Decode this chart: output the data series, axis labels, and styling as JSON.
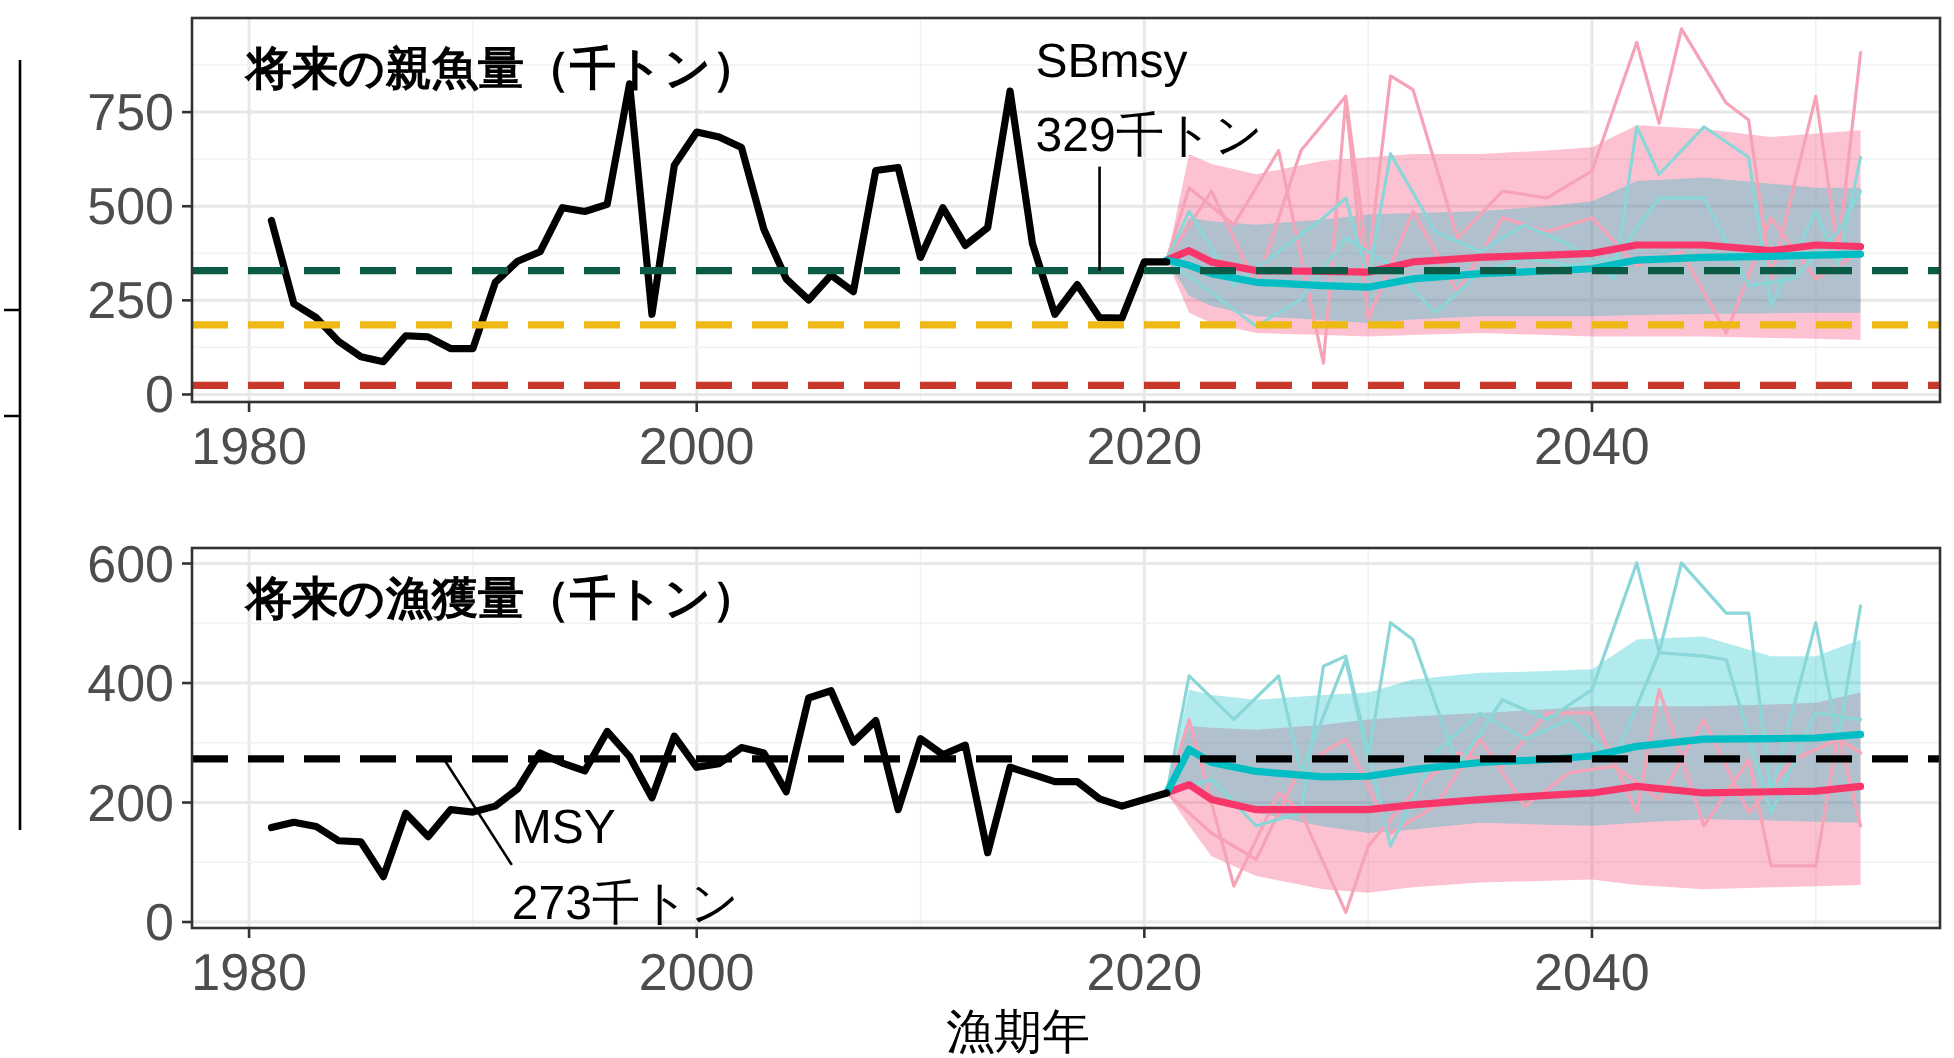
{
  "chart_data": [
    {
      "type": "line",
      "title": "将来の親魚量（千トン）",
      "xlim": [
        1977.45,
        2055.55
      ],
      "ylim": [
        -20,
        1000
      ],
      "xticks": [
        1980,
        2000,
        2020,
        2040
      ],
      "yticks": [
        0,
        250,
        500,
        750
      ],
      "grid": true,
      "series": [
        {
          "color": "#000000",
          "x": [
            1981,
            1982,
            1983,
            1984,
            1985,
            1986,
            1987,
            1988,
            1989,
            1990,
            1991,
            1992,
            1993,
            1994,
            1995,
            1996,
            1997,
            1998,
            1999,
            2000,
            2001,
            2002,
            2003,
            2004,
            2005,
            2006,
            2007,
            2008,
            2009,
            2010,
            2011,
            2012,
            2013,
            2014,
            2015,
            2016,
            2017,
            2018,
            2019,
            2020,
            2021
          ],
          "values": [
            462,
            241,
            204,
            141,
            100,
            87,
            156,
            153,
            122,
            122,
            298,
            354,
            379,
            496,
            486,
            505,
            825,
            213,
            609,
            697,
            684,
            656,
            439,
            307,
            251,
            317,
            273,
            595,
            603,
            364,
            496,
            396,
            443,
            806,
            401,
            213,
            292,
            204,
            203,
            352,
            352
          ]
        },
        {
          "color": "#f8366a",
          "x": [
            2021,
            2022,
            2023,
            2025,
            2028,
            2030,
            2032,
            2035,
            2038,
            2040,
            2042,
            2045,
            2048,
            2050,
            2052
          ],
          "values": [
            357,
            382,
            352,
            329,
            327,
            325,
            352,
            364,
            370,
            375,
            397,
            397,
            382,
            397,
            393
          ],
          "upper": [
            357,
            639,
            612,
            585,
            621,
            630,
            639,
            639,
            648,
            657,
            715,
            705,
            684,
            693,
            702
          ],
          "lower": [
            357,
            217,
            190,
            163,
            158,
            154,
            158,
            163,
            158,
            154,
            154,
            154,
            150,
            148,
            145
          ]
        },
        {
          "color": "#00bec4",
          "x": [
            2021,
            2022,
            2023,
            2025,
            2028,
            2030,
            2032,
            2035,
            2038,
            2040,
            2042,
            2045,
            2048,
            2050,
            2052
          ],
          "values": [
            357,
            343,
            321,
            298,
            289,
            285,
            307,
            321,
            328,
            334,
            357,
            364,
            367,
            370,
            373
          ],
          "upper": [
            357,
            469,
            460,
            451,
            465,
            478,
            482,
            487,
            500,
            513,
            567,
            576,
            560,
            549,
            549
          ],
          "lower": [
            357,
            262,
            235,
            208,
            198,
            190,
            199,
            208,
            208,
            208,
            211,
            214,
            216,
            217,
            217
          ]
        },
        {
          "color": "#f6a3b7",
          "x": [
            2021,
            2023,
            2025,
            2027,
            2029,
            2030,
            2031,
            2032,
            2034,
            2036,
            2038,
            2040,
            2042,
            2043,
            2044,
            2046,
            2047,
            2048,
            2050,
            2051,
            2052
          ],
          "values": [
            357,
            540,
            289,
            648,
            792,
            343,
            846,
            810,
            415,
            540,
            522,
            594,
            935,
            720,
            971,
            774,
            729,
            307,
            792,
            379,
            908
          ]
        },
        {
          "color": "#f6a3b7",
          "x": [
            2021,
            2022,
            2024,
            2026,
            2028,
            2029,
            2030,
            2032,
            2034,
            2036,
            2038,
            2040,
            2042,
            2044,
            2046,
            2048,
            2050,
            2052
          ],
          "values": [
            357,
            549,
            451,
            648,
            83,
            783,
            199,
            487,
            271,
            469,
            433,
            469,
            343,
            379,
            163,
            469,
            307,
            379
          ]
        },
        {
          "color": "#8ad6d8",
          "x": [
            2021,
            2022,
            2024,
            2026,
            2028,
            2029,
            2030,
            2031,
            2033,
            2035,
            2037,
            2039,
            2041,
            2042,
            2043,
            2045,
            2047,
            2048,
            2050,
            2051,
            2052
          ],
          "values": [
            357,
            487,
            289,
            379,
            469,
            522,
            307,
            639,
            433,
            379,
            451,
            397,
            307,
            711,
            585,
            711,
            630,
            235,
            487,
            343,
            630
          ]
        },
        {
          "color": "#8ad6d8",
          "x": [
            2021,
            2023,
            2025,
            2027,
            2029,
            2031,
            2033,
            2035,
            2037,
            2039,
            2041,
            2043,
            2045,
            2047,
            2049,
            2051,
            2052
          ],
          "values": [
            357,
            271,
            181,
            253,
            415,
            343,
            217,
            325,
            361,
            343,
            361,
            522,
            522,
            289,
            307,
            433,
            540
          ]
        }
      ],
      "ref_lines": [
        {
          "axis": "y",
          "value": 329,
          "color": "#0b5a45",
          "line_style": "dashed"
        },
        {
          "axis": "y",
          "value": 185,
          "color": "#eeb815",
          "line_style": "dashed"
        },
        {
          "axis": "y",
          "value": 24,
          "color": "#c8392b",
          "line_style": "dashed"
        }
      ],
      "annotations": [
        {
          "text": "SBmsy\n329千トン",
          "x": 2018,
          "y": 329
        }
      ]
    },
    {
      "type": "line",
      "title": "将来の漁獲量（千トン）",
      "xlabel": "漁期年",
      "xlim": [
        1977.45,
        2055.55
      ],
      "ylim": [
        -10,
        626
      ],
      "xticks": [
        1980,
        2000,
        2020,
        2040
      ],
      "yticks": [
        0,
        200,
        400,
        600
      ],
      "grid": true,
      "series": [
        {
          "color": "#000000",
          "x": [
            1981,
            1982,
            1983,
            1984,
            1985,
            1986,
            1987,
            1988,
            1989,
            1990,
            1991,
            1992,
            1993,
            1994,
            1995,
            1996,
            1997,
            1998,
            1999,
            2000,
            2001,
            2002,
            2003,
            2004,
            2005,
            2006,
            2007,
            2008,
            2009,
            2010,
            2011,
            2012,
            2013,
            2014,
            2015,
            2016,
            2017,
            2018,
            2019,
            2020,
            2021
          ],
          "values": [
            158,
            167,
            160,
            136,
            134,
            76,
            182,
            143,
            188,
            184,
            194,
            223,
            283,
            266,
            253,
            319,
            277,
            208,
            311,
            259,
            265,
            292,
            283,
            218,
            375,
            387,
            301,
            337,
            188,
            307,
            280,
            296,
            116,
            259,
            247,
            235,
            235,
            206,
            194,
            205,
            216
          ]
        },
        {
          "color": "#f8366a",
          "x": [
            2021,
            2022,
            2023,
            2025,
            2028,
            2030,
            2032,
            2035,
            2038,
            2040,
            2042,
            2045,
            2048,
            2050,
            2052
          ],
          "values": [
            216,
            230,
            205,
            188,
            188,
            188,
            196,
            205,
            212,
            216,
            227,
            216,
            218,
            219,
            227
          ],
          "upper": [
            216,
            328,
            325,
            322,
            330,
            339,
            344,
            350,
            356,
            361,
            361,
            361,
            364,
            367,
            384
          ],
          "lower": [
            216,
            161,
            110,
            77,
            55,
            49,
            58,
            66,
            69,
            71,
            62,
            55,
            58,
            60,
            62
          ]
        },
        {
          "color": "#00bec4",
          "x": [
            2021,
            2022,
            2023,
            2025,
            2028,
            2030,
            2032,
            2035,
            2038,
            2040,
            2042,
            2045,
            2048,
            2050,
            2052
          ],
          "values": [
            216,
            289,
            267,
            252,
            243,
            244,
            255,
            267,
            272,
            278,
            294,
            306,
            307,
            308,
            314
          ],
          "upper": [
            216,
            389,
            380,
            372,
            380,
            384,
            406,
            417,
            420,
            423,
            473,
            478,
            445,
            445,
            473
          ],
          "lower": [
            216,
            227,
            205,
            183,
            160,
            149,
            155,
            166,
            163,
            161,
            166,
            172,
            170,
            168,
            166
          ]
        },
        {
          "color": "#f6a3b7",
          "x": [
            2021,
            2022,
            2024,
            2026,
            2027,
            2029,
            2030,
            2032,
            2034,
            2036,
            2038,
            2040,
            2042,
            2043,
            2045,
            2047,
            2048,
            2050,
            2051,
            2052
          ],
          "values": [
            216,
            339,
            60,
            216,
            183,
            16,
            127,
            216,
            283,
            261,
            350,
            350,
            183,
            389,
            161,
            272,
            94,
            94,
            317,
            161
          ]
        },
        {
          "color": "#f6a3b7",
          "x": [
            2021,
            2023,
            2025,
            2027,
            2029,
            2031,
            2033,
            2035,
            2037,
            2039,
            2041,
            2043,
            2045,
            2047,
            2049,
            2051,
            2052
          ],
          "values": [
            216,
            149,
            105,
            261,
            306,
            149,
            194,
            306,
            194,
            250,
            261,
            205,
            339,
            183,
            272,
            306,
            283
          ]
        },
        {
          "color": "#8ad6d8",
          "x": [
            2021,
            2022,
            2024,
            2026,
            2027,
            2029,
            2030,
            2031,
            2032,
            2034,
            2036,
            2038,
            2040,
            2042,
            2043,
            2044,
            2046,
            2047,
            2048,
            2050,
            2051,
            2052
          ],
          "values": [
            216,
            412,
            339,
            412,
            250,
            439,
            272,
            501,
            473,
            261,
            372,
            339,
            389,
            601,
            451,
            601,
            517,
            517,
            216,
            501,
            306,
            529
          ]
        },
        {
          "color": "#8ad6d8",
          "x": [
            2021,
            2023,
            2025,
            2027,
            2028,
            2029,
            2031,
            2033,
            2035,
            2037,
            2039,
            2041,
            2043,
            2045,
            2046,
            2048,
            2050,
            2052
          ],
          "values": [
            216,
            239,
            161,
            183,
            428,
            445,
            127,
            283,
            350,
            306,
            339,
            272,
            451,
            445,
            439,
            183,
            350,
            339
          ]
        }
      ],
      "ref_lines": [
        {
          "axis": "y",
          "value": 273,
          "color": "#000000",
          "line_style": "dashed"
        }
      ],
      "annotations": [
        {
          "text": "MSY\n273千トン",
          "x": 1988.7,
          "y": 273
        }
      ]
    }
  ]
}
